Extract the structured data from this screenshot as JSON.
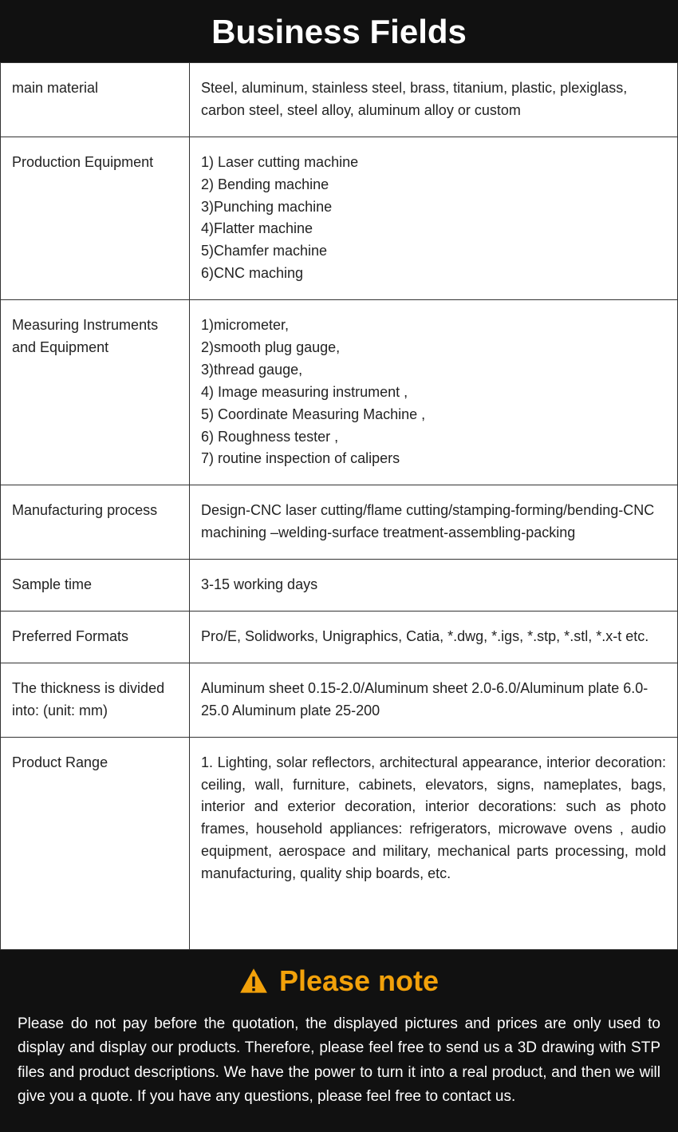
{
  "colors": {
    "header_bg": "#111111",
    "header_text": "#ffffff",
    "table_border": "#333333",
    "body_text": "#222222",
    "body_bg": "#ffffff",
    "footer_bg": "#111111",
    "footer_text": "#ffffff",
    "accent_gold": "#f2a10a"
  },
  "header": {
    "title": "Business Fields"
  },
  "table": {
    "rows": [
      {
        "label": "main material",
        "value": "Steel, aluminum, stainless steel, brass, titanium, plastic, plexiglass, carbon steel, steel alloy, aluminum alloy or custom"
      },
      {
        "label": "Production Equipment",
        "lines": [
          "1) Laser cutting machine",
          "2) Bending machine",
          "3)Punching machine",
          "4)Flatter machine",
          "5)Chamfer machine",
          "6)CNC maching"
        ]
      },
      {
        "label": "Measuring Instruments and Equipment",
        "lines": [
          "1)micrometer,",
          "2)smooth plug gauge,",
          "3)thread gauge,",
          "4) Image measuring instrument ,",
          "5) Coordinate Measuring Machine ,",
          "6) Roughness tester ,",
          "7) routine inspection of calipers"
        ]
      },
      {
        "label": "Manufacturing process",
        "value": "Design-CNC laser cutting/flame cutting/stamping-forming/bending-CNC machining –welding-surface treatment-assembling-packing"
      },
      {
        "label": "Sample time",
        "value": "3-15  working days"
      },
      {
        "label": "Preferred Formats",
        "value": "Pro/E, Solidworks, Unigraphics, Catia, *.dwg, *.igs, *.stp, *.stl, *.x-t etc."
      },
      {
        "label": "The thickness is divided into: (unit: mm)",
        "value": "Aluminum sheet 0.15-2.0/Aluminum sheet 2.0-6.0/Aluminum plate 6.0-25.0 Aluminum plate 25-200"
      },
      {
        "label": "Product Range",
        "value": "1. Lighting, solar reflectors, architectural appearance, interior decoration: ceiling, wall, furniture, cabinets, elevators, signs, nameplates, bags, interior and exterior decoration, interior decorations: such as photo frames, household appliances: refrigerators, microwave ovens , audio equipment, aerospace and military, mechanical parts processing, mold manufacturing, quality ship boards, etc.",
        "justify": true,
        "tall": true
      }
    ]
  },
  "footer": {
    "title": "Please note",
    "icon": "warning-triangle",
    "body": "Please do not pay before the quotation, the displayed pictures and prices are only used to display and display our products. Therefore, please feel free to send us a 3D drawing with STP files and product descriptions. We have the power to turn it into a real product, and then we will give you a quote. If you have any questions, please feel free to contact us."
  }
}
